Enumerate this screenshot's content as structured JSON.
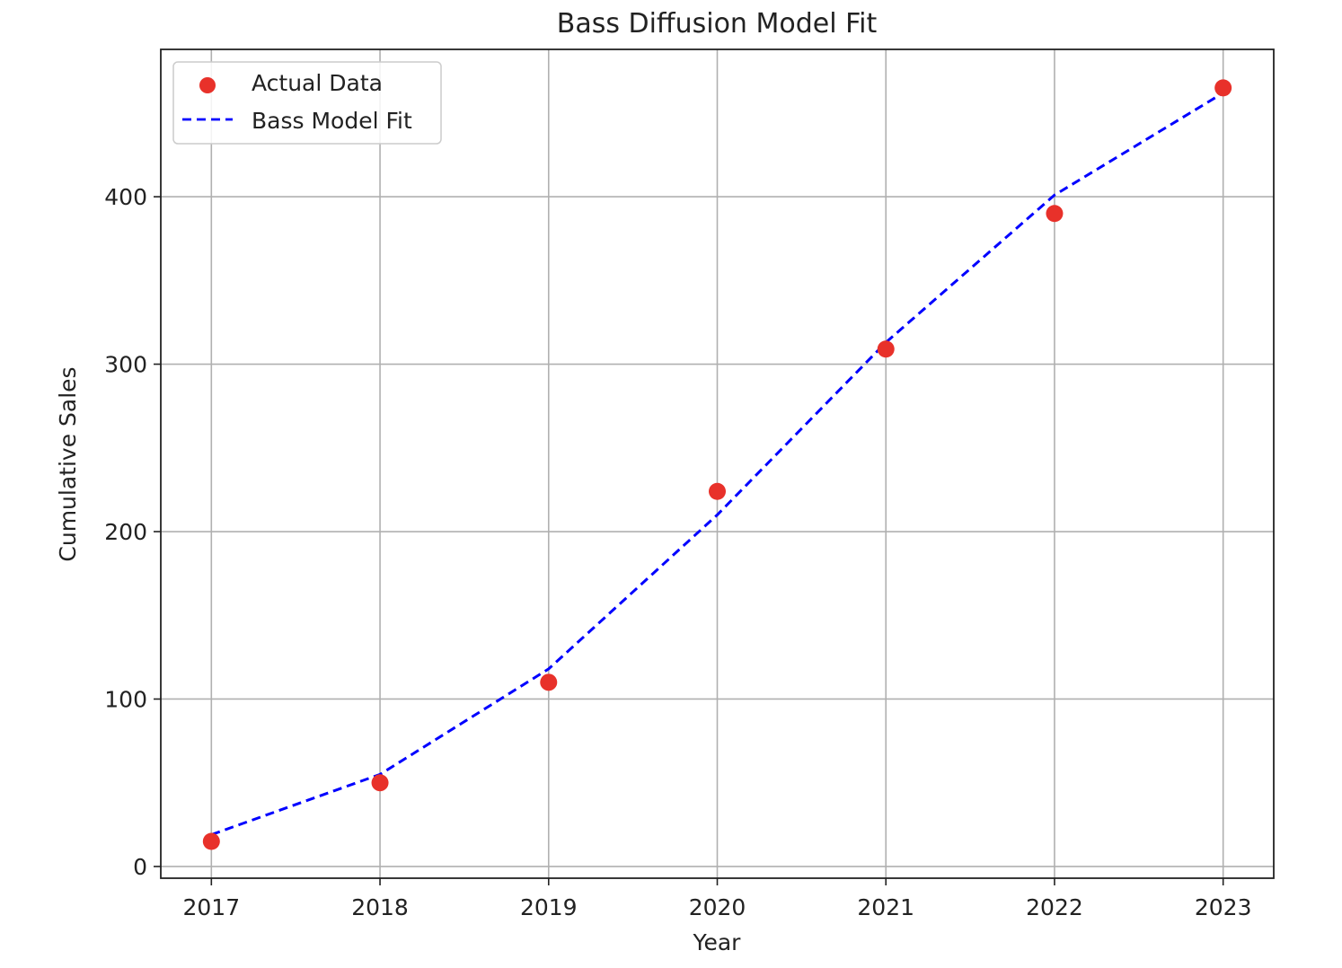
{
  "chart_data": {
    "type": "scatter",
    "title": "Bass Diffusion Model Fit",
    "xlabel": "Year",
    "ylabel": "Cumulative Sales",
    "x": [
      2017,
      2018,
      2019,
      2020,
      2021,
      2022,
      2023
    ],
    "xlim": [
      2016.7,
      2023.3
    ],
    "ylim": [
      -7,
      488
    ],
    "x_ticks": [
      "2017",
      "2018",
      "2019",
      "2020",
      "2021",
      "2022",
      "2023"
    ],
    "y_ticks": [
      "0",
      "100",
      "200",
      "300",
      "400"
    ],
    "grid": true,
    "legend_position": "top-left",
    "series": [
      {
        "name": "Actual Data",
        "kind": "scatter",
        "color": "#e8312a",
        "values": [
          15,
          50,
          110,
          224,
          309,
          390,
          465
        ]
      },
      {
        "name": "Bass Model Fit",
        "kind": "line",
        "style": "dashed",
        "color": "#0000ff",
        "values": [
          19,
          55,
          118,
          210,
          313,
          401,
          462
        ]
      }
    ]
  }
}
